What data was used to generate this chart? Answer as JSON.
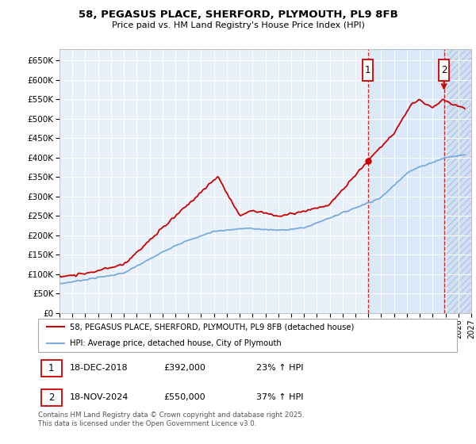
{
  "title_line1": "58, PEGASUS PLACE, SHERFORD, PLYMOUTH, PL9 8FB",
  "title_line2": "Price paid vs. HM Land Registry's House Price Index (HPI)",
  "ylabel_ticks": [
    "£0",
    "£50K",
    "£100K",
    "£150K",
    "£200K",
    "£250K",
    "£300K",
    "£350K",
    "£400K",
    "£450K",
    "£500K",
    "£550K",
    "£600K",
    "£650K"
  ],
  "ytick_values": [
    0,
    50000,
    100000,
    150000,
    200000,
    250000,
    300000,
    350000,
    400000,
    450000,
    500000,
    550000,
    600000,
    650000
  ],
  "ylim": [
    0,
    680000
  ],
  "xlim_start": 1995,
  "xlim_end": 2027,
  "legend_line1": "58, PEGASUS PLACE, SHERFORD, PLYMOUTH, PL9 8FB (detached house)",
  "legend_line2": "HPI: Average price, detached house, City of Plymouth",
  "marker1_date": "18-DEC-2018",
  "marker1_price": "£392,000",
  "marker1_pct": "23% ↑ HPI",
  "marker1_x": 2018.96,
  "marker1_y": 392000,
  "marker2_date": "18-NOV-2024",
  "marker2_price": "£550,000",
  "marker2_pct": "37% ↑ HPI",
  "marker2_x": 2024.88,
  "marker2_y": 550000,
  "footnote": "Contains HM Land Registry data © Crown copyright and database right 2025.\nThis data is licensed under the Open Government Licence v3.0.",
  "line_color_red": "#cc0000",
  "line_color_blue": "#7aaadd",
  "chart_bg": "#e8f0fa",
  "grid_color": "#ffffff",
  "shade_after_m2_color": "#c8d8f0"
}
